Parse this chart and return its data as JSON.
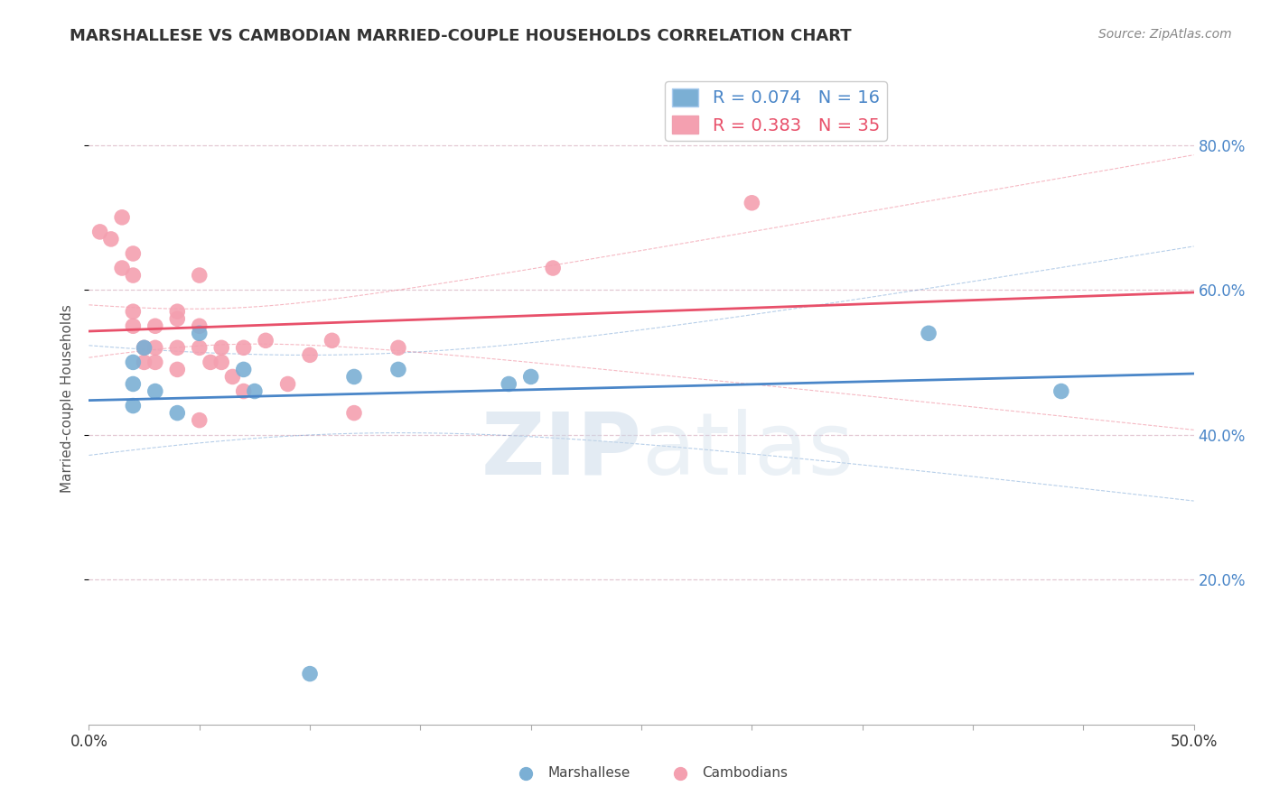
{
  "title": "MARSHALLESE VS CAMBODIAN MARRIED-COUPLE HOUSEHOLDS CORRELATION CHART",
  "source": "Source: ZipAtlas.com",
  "ylabel": "Married-couple Households",
  "xlim": [
    0.0,
    0.5
  ],
  "ylim": [
    0.0,
    0.9
  ],
  "yticks": [
    0.2,
    0.4,
    0.6,
    0.8
  ],
  "ytick_labels": [
    "20.0%",
    "40.0%",
    "60.0%",
    "80.0%"
  ],
  "xtick_positions": [
    0.0,
    0.05,
    0.1,
    0.15,
    0.2,
    0.25,
    0.3,
    0.35,
    0.4,
    0.45,
    0.5
  ],
  "legend_blue_label": "R = 0.074   N = 16",
  "legend_pink_label": "R = 0.383   N = 35",
  "marshallese_color": "#7bafd4",
  "cambodian_color": "#f4a0b0",
  "marshallese_line_color": "#4a86c8",
  "cambodian_line_color": "#e8506a",
  "watermark_color": "#c8d8e8",
  "background_color": "#ffffff",
  "grid_color": "#ddbbc8",
  "grid_style": "--",
  "legend_fontsize": 14,
  "title_fontsize": 13,
  "marshallese_x": [
    0.02,
    0.02,
    0.02,
    0.025,
    0.03,
    0.04,
    0.05,
    0.07,
    0.075,
    0.12,
    0.14,
    0.19,
    0.2,
    0.38,
    0.44,
    0.1
  ],
  "marshallese_y": [
    0.47,
    0.5,
    0.44,
    0.52,
    0.46,
    0.43,
    0.54,
    0.49,
    0.46,
    0.48,
    0.49,
    0.47,
    0.48,
    0.54,
    0.46,
    0.07
  ],
  "cambodian_x": [
    0.005,
    0.01,
    0.015,
    0.015,
    0.02,
    0.02,
    0.02,
    0.02,
    0.025,
    0.025,
    0.03,
    0.03,
    0.03,
    0.04,
    0.04,
    0.04,
    0.04,
    0.05,
    0.05,
    0.05,
    0.055,
    0.06,
    0.06,
    0.065,
    0.07,
    0.07,
    0.08,
    0.09,
    0.1,
    0.11,
    0.12,
    0.14,
    0.21,
    0.3,
    0.05
  ],
  "cambodian_y": [
    0.68,
    0.67,
    0.7,
    0.63,
    0.65,
    0.62,
    0.57,
    0.55,
    0.52,
    0.5,
    0.55,
    0.52,
    0.5,
    0.57,
    0.56,
    0.52,
    0.49,
    0.62,
    0.55,
    0.52,
    0.5,
    0.52,
    0.5,
    0.48,
    0.52,
    0.46,
    0.53,
    0.47,
    0.51,
    0.53,
    0.43,
    0.52,
    0.63,
    0.72,
    0.42
  ]
}
